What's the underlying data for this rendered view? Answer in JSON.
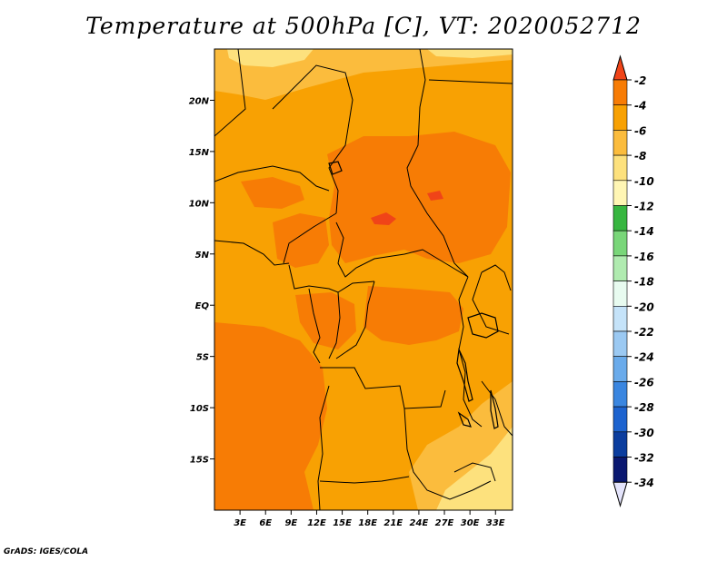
{
  "title": "Temperature at 500hPa [C], VT: 2020052712",
  "credit": "GrADS: IGES/COLA",
  "map": {
    "lon_range": [
      0,
      35
    ],
    "lat_range": [
      -20,
      25
    ],
    "lon_ticks": [
      {
        "lon": 3,
        "label": "3E"
      },
      {
        "lon": 6,
        "label": "6E"
      },
      {
        "lon": 9,
        "label": "9E"
      },
      {
        "lon": 12,
        "label": "12E"
      },
      {
        "lon": 15,
        "label": "15E"
      },
      {
        "lon": 18,
        "label": "18E"
      },
      {
        "lon": 21,
        "label": "21E"
      },
      {
        "lon": 24,
        "label": "24E"
      },
      {
        "lon": 27,
        "label": "27E"
      },
      {
        "lon": 30,
        "label": "30E"
      },
      {
        "lon": 33,
        "label": "33E"
      }
    ],
    "lat_ticks": [
      {
        "lat": 20,
        "label": "20N"
      },
      {
        "lat": 15,
        "label": "15N"
      },
      {
        "lat": 10,
        "label": "10N"
      },
      {
        "lat": 5,
        "label": "5N"
      },
      {
        "lat": 0,
        "label": "EQ"
      },
      {
        "lat": -5,
        "label": "5S"
      },
      {
        "lat": -10,
        "label": "10S"
      },
      {
        "lat": -15,
        "label": "15S"
      }
    ],
    "colorbar": {
      "labels": [
        "-2",
        "-4",
        "-6",
        "-8",
        "-10",
        "-12",
        "-14",
        "-16",
        "-18",
        "-20",
        "-22",
        "-24",
        "-26",
        "-28",
        "-30",
        "-32",
        "-34"
      ],
      "colors": [
        "#f04418",
        "#f77c05",
        "#f8a103",
        "#fbbc3d",
        "#fde17d",
        "#fff6b4",
        "#37b640",
        "#79d679",
        "#b0ebb0",
        "#e8fbf0",
        "#c5e3f9",
        "#9bc9f2",
        "#6aabeb",
        "#3a86e0",
        "#1d63cf",
        "#0b3d9e",
        "#0a1870"
      ],
      "top_arrow_color": "#f04418",
      "bottom_arrow_color": "#e4e4fb"
    }
  }
}
